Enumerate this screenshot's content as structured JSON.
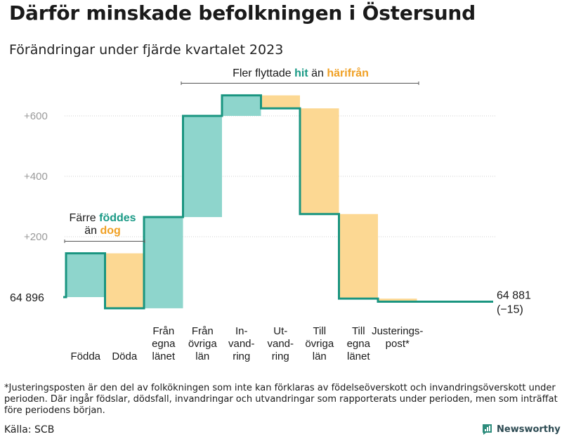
{
  "title": "Därför minskade befolkningen i Östersund",
  "subtitle": "Förändringar under fjärde kvartalet 2023",
  "colors": {
    "increase": "#8ed5cc",
    "decrease": "#fcd893",
    "line": "#1a9580",
    "green_text": "#1a9a86",
    "orange_text": "#f0a024",
    "gridline": "#cfcfcf",
    "axis_text": "#9a9a9a"
  },
  "annotations": {
    "births_deaths": {
      "line1_pre": "Färre ",
      "line1_hl": "föddes",
      "line2_pre": "än ",
      "line2_hl": "dog"
    },
    "moves": {
      "pre": "Fler flyttade ",
      "hl1": "hit",
      "mid": " än ",
      "hl2": "härifrån"
    }
  },
  "chart_data": {
    "type": "waterfall",
    "title": "Därför minskade befolkningen i Östersund",
    "subtitle": "Förändringar under fjärde kvartalet 2023",
    "baseline": 64896,
    "end_value": 64881,
    "start_label": "64  896",
    "end_label_line1": "64 881",
    "end_label_line2": "(−15)",
    "ylim": [
      -40,
      700
    ],
    "yticks": [
      {
        "value": 200,
        "label": "+200"
      },
      {
        "value": 400,
        "label": "+400"
      },
      {
        "value": 600,
        "label": "+600"
      }
    ],
    "steps": [
      {
        "category": "Födda",
        "label_lines": [
          "Födda"
        ],
        "value": 145,
        "type": "increase"
      },
      {
        "category": "Döda",
        "label_lines": [
          "Döda"
        ],
        "value": -182,
        "type": "decrease"
      },
      {
        "category": "Från egna länet",
        "label_lines": [
          "Från",
          "egna",
          "länet"
        ],
        "value": 302,
        "type": "increase"
      },
      {
        "category": "Från övriga län",
        "label_lines": [
          "Från",
          "övriga",
          "län"
        ],
        "value": 335,
        "type": "increase"
      },
      {
        "category": "Invandring",
        "label_lines": [
          "In-",
          "vand-",
          "ring"
        ],
        "value": 68,
        "type": "increase"
      },
      {
        "category": "Utvandring",
        "label_lines": [
          "Ut-",
          "vand-",
          "ring"
        ],
        "value": -43,
        "type": "decrease"
      },
      {
        "category": "Till övriga län",
        "label_lines": [
          "Till",
          "övriga",
          "län"
        ],
        "value": -350,
        "type": "decrease"
      },
      {
        "category": "Till egna länet",
        "label_lines": [
          "Till",
          "egna",
          "länet"
        ],
        "value": -280,
        "type": "decrease"
      },
      {
        "category": "Justeringspost*",
        "label_lines": [
          "Justerings-",
          "post*"
        ],
        "value": -10,
        "type": "decrease"
      }
    ]
  },
  "footnote": "*Justeringsposten är den del av folkökningen som inte kan förklaras av födelseöverskott och invandringsöverskott under perioden. Där ingår födslar, dödsfall, invandringar och utvandringar som rapporterats under perioden, men som inträffat före periodens början.",
  "source": "Källa: SCB",
  "brand": {
    "name": "Newsworthy",
    "icon": "newsworthy-logo-icon"
  }
}
